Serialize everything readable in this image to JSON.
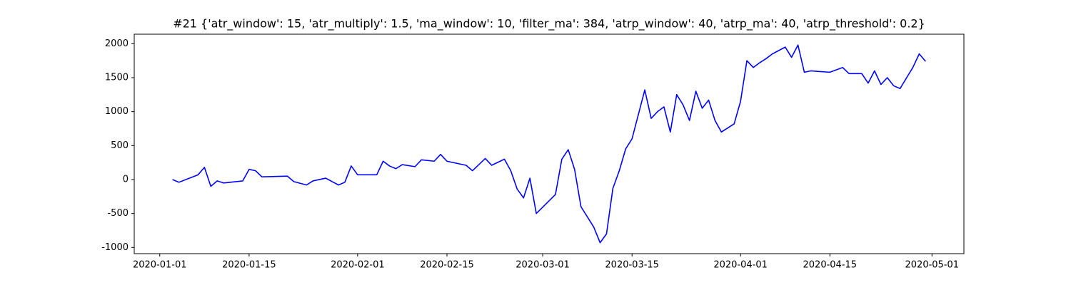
{
  "chart_data": {
    "type": "line",
    "title": "#21 {'atr_window': 15, 'atr_multiply': 1.5, 'ma_window': 10, 'filter_ma': 384, 'atrp_window': 40, 'atrp_ma': 40, 'atrp_threshold': 0.2}",
    "color": "#0000ff",
    "x": [
      "2020-01-03",
      "2020-01-04",
      "2020-01-07",
      "2020-01-08",
      "2020-01-09",
      "2020-01-10",
      "2020-01-11",
      "2020-01-14",
      "2020-01-15",
      "2020-01-16",
      "2020-01-17",
      "2020-01-21",
      "2020-01-22",
      "2020-01-24",
      "2020-01-25",
      "2020-01-27",
      "2020-01-29",
      "2020-01-30",
      "2020-01-31",
      "2020-02-01",
      "2020-02-04",
      "2020-02-05",
      "2020-02-06",
      "2020-02-07",
      "2020-02-08",
      "2020-02-10",
      "2020-02-11",
      "2020-02-13",
      "2020-02-14",
      "2020-02-15",
      "2020-02-18",
      "2020-02-19",
      "2020-02-20",
      "2020-02-21",
      "2020-02-22",
      "2020-02-24",
      "2020-02-25",
      "2020-02-26",
      "2020-02-27",
      "2020-02-28",
      "2020-02-29",
      "2020-03-03",
      "2020-03-04",
      "2020-03-05",
      "2020-03-06",
      "2020-03-07",
      "2020-03-09",
      "2020-03-10",
      "2020-03-11",
      "2020-03-12",
      "2020-03-13",
      "2020-03-14",
      "2020-03-15",
      "2020-03-17",
      "2020-03-18",
      "2020-03-19",
      "2020-03-20",
      "2020-03-21",
      "2020-03-22",
      "2020-03-23",
      "2020-03-24",
      "2020-03-25",
      "2020-03-26",
      "2020-03-27",
      "2020-03-28",
      "2020-03-29",
      "2020-03-30",
      "2020-03-31",
      "2020-04-01",
      "2020-04-02",
      "2020-04-03",
      "2020-04-04",
      "2020-04-05",
      "2020-04-06",
      "2020-04-08",
      "2020-04-09",
      "2020-04-10",
      "2020-04-11",
      "2020-04-12",
      "2020-04-15",
      "2020-04-17",
      "2020-04-18",
      "2020-04-20",
      "2020-04-21",
      "2020-04-22",
      "2020-04-23",
      "2020-04-24",
      "2020-04-25",
      "2020-04-26",
      "2020-04-28",
      "2020-04-29",
      "2020-04-30"
    ],
    "values": [
      0,
      -40,
      70,
      180,
      -100,
      -20,
      -50,
      -20,
      150,
      130,
      40,
      50,
      -30,
      -80,
      -20,
      20,
      -80,
      -40,
      200,
      70,
      70,
      270,
      200,
      160,
      220,
      190,
      290,
      270,
      370,
      270,
      210,
      130,
      220,
      310,
      210,
      300,
      130,
      -140,
      -270,
      20,
      -500,
      -220,
      300,
      440,
      150,
      -400,
      -700,
      -930,
      -800,
      -130,
      130,
      450,
      600,
      1320,
      900,
      1000,
      1070,
      700,
      1250,
      1100,
      870,
      1300,
      1050,
      1170,
      870,
      700,
      760,
      820,
      1150,
      1750,
      1650,
      1720,
      1780,
      1850,
      1950,
      1800,
      1980,
      1580,
      1600,
      1580,
      1650,
      1560,
      1560,
      1420,
      1600,
      1400,
      1500,
      1380,
      1340,
      1650,
      1850,
      1740
    ],
    "xlim": [
      "2019-12-28",
      "2020-05-06"
    ],
    "xticks": [
      "2020-01-01",
      "2020-01-15",
      "2020-02-01",
      "2020-02-15",
      "2020-03-01",
      "2020-03-15",
      "2020-04-01",
      "2020-04-15",
      "2020-05-01"
    ],
    "ylim": [
      -1091,
      2140
    ],
    "yticks": [
      -1000,
      -500,
      0,
      500,
      1000,
      1500,
      2000
    ],
    "grid": false
  }
}
